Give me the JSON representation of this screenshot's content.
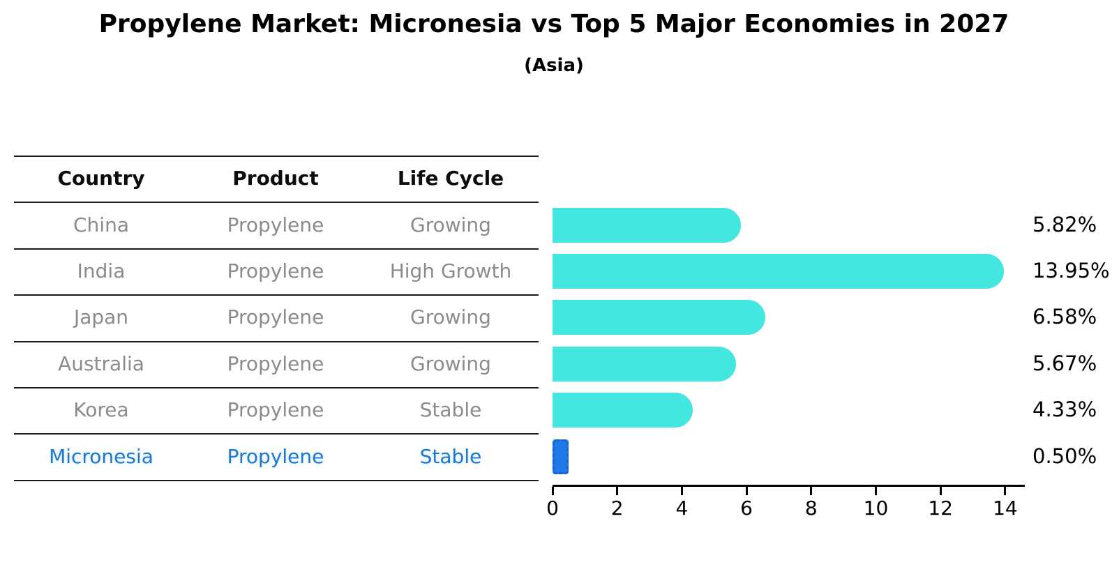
{
  "title": "Propylene Market: Micronesia vs Top 5 Major Economies in 2027",
  "subtitle": "(Asia)",
  "table": {
    "headers": [
      "Country",
      "Product",
      "Life Cycle"
    ],
    "rows": [
      {
        "country": "China",
        "product": "Propylene",
        "life_cycle": "Growing",
        "highlight": false
      },
      {
        "country": "India",
        "product": "Propylene",
        "life_cycle": "High Growth",
        "highlight": false
      },
      {
        "country": "Japan",
        "product": "Propylene",
        "life_cycle": "Growing",
        "highlight": false
      },
      {
        "country": "Australia",
        "product": "Propylene",
        "life_cycle": "Growing",
        "highlight": false
      },
      {
        "country": "Korea",
        "product": "Propylene",
        "life_cycle": "Stable",
        "highlight": false
      },
      {
        "country": "Micronesia",
        "product": "Propylene",
        "life_cycle": "Stable",
        "highlight": true
      }
    ]
  },
  "chart_data": {
    "type": "bar",
    "orientation": "horizontal",
    "title": "Propylene Market: Micronesia vs Top 5 Major Economies in 2027",
    "subtitle": "(Asia)",
    "categories": [
      "China",
      "India",
      "Japan",
      "Australia",
      "Korea",
      "Micronesia"
    ],
    "values": [
      5.82,
      13.95,
      6.58,
      5.67,
      4.33,
      0.5
    ],
    "value_labels": [
      "5.82%",
      "13.95%",
      "6.58%",
      "5.67%",
      "4.33%",
      "0.50%"
    ],
    "xlim": [
      0,
      14.6
    ],
    "x_ticks": [
      "0",
      "2",
      "4",
      "6",
      "8",
      "10",
      "12",
      "14"
    ],
    "highlight_index": 5,
    "bar_color": "#44e6e0",
    "highlight_bar_color": "#2079e8",
    "highlight_text_color": "#1f78cd",
    "grid": false,
    "legend": false
  }
}
